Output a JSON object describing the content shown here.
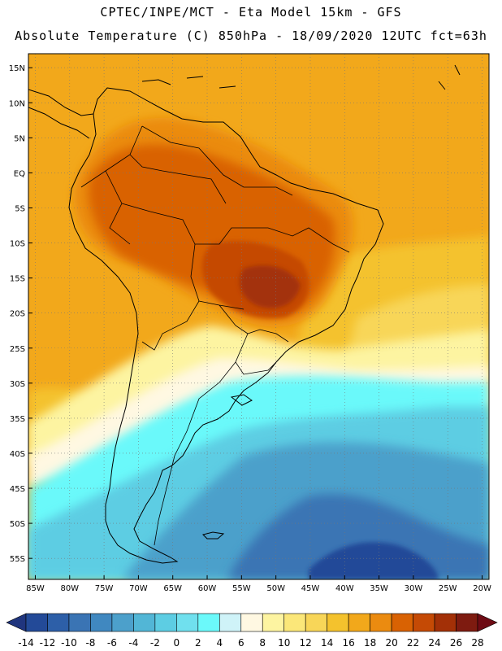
{
  "header": {
    "line1": "CPTEC/INPE/MCT -  Eta Model 15km - GFS",
    "line2": "Absolute Temperature (C) 850hPa - 18/09/2020 12UTC fct=63h"
  },
  "map": {
    "lon_range": [
      -86,
      -19
    ],
    "lat_range": [
      -58,
      17
    ],
    "lon_ticks": [
      "85W",
      "80W",
      "75W",
      "70W",
      "65W",
      "60W",
      "55W",
      "50W",
      "45W",
      "40W",
      "35W",
      "30W",
      "25W",
      "20W"
    ],
    "lat_ticks": [
      "15N",
      "10N",
      "5N",
      "EQ",
      "5S",
      "10S",
      "15S",
      "20S",
      "25S",
      "30S",
      "35S",
      "40S",
      "45S",
      "50S",
      "55S"
    ],
    "ocean_color": "#f2a81b",
    "coastline_color": "#000000",
    "grid_style": "dotted"
  },
  "colorbar": {
    "labels": [
      "-14",
      "-12",
      "-10",
      "-8",
      "-6",
      "-4",
      "-2",
      "0",
      "2",
      "4",
      "6",
      "8",
      "10",
      "12",
      "14",
      "16",
      "18",
      "20",
      "22",
      "24",
      "26",
      "28"
    ],
    "colors": [
      "#20357e",
      "#234a98",
      "#2d5fa8",
      "#3a74b4",
      "#4088c0",
      "#4ca0cb",
      "#52b6d6",
      "#5dcde3",
      "#70e0ee",
      "#6bf9fa",
      "#cff3f8",
      "#fff8e2",
      "#fdf4a1",
      "#fbe779",
      "#f8d658",
      "#f4c22d",
      "#f2a81b",
      "#eb8b10",
      "#d96203",
      "#c54a05",
      "#a33007",
      "#7e1b10",
      "#6e0b14"
    ]
  }
}
